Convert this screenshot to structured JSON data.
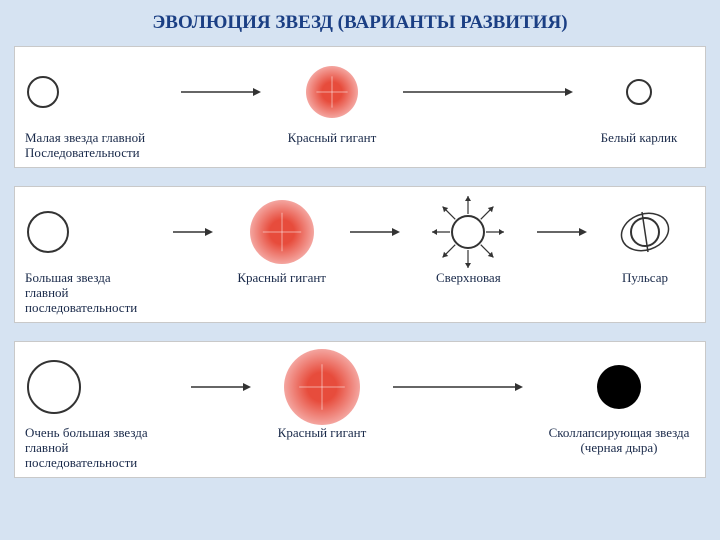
{
  "page": {
    "background_color": "#d6e3f2",
    "panel_background": "#ffffff",
    "panel_border_color": "#c9c9c9",
    "title_color": "#1b3f84",
    "title_fontsize": 19,
    "label_color": "#1a2a4a",
    "label_fontsize": 13
  },
  "title": "ЭВОЛЮЦИЯ ЗВЕЗД (ВАРИАНТЫ РАЗВИТИЯ)",
  "colors": {
    "star_outline": "#333333",
    "red_giant_fill": "#f6b4b0",
    "red_giant_center": "#e74c3c",
    "black_hole_fill": "#000000",
    "arrow_stroke": "#333333",
    "pulsar_ring": "#333333"
  },
  "panels": [
    {
      "stages": [
        {
          "type": "outline-circle",
          "radius": 15,
          "label": "Малая звезда главной\nПоследовательности",
          "align": "left",
          "width": 150
        },
        {
          "type": "red-giant",
          "radius": 26,
          "label": "Красный гигант",
          "width": 130
        },
        {
          "type": "outline-circle",
          "radius": 12,
          "label": "Белый карлик",
          "width": 120
        }
      ],
      "arrows": [
        {
          "length": 80,
          "stroke_width": 1.5
        },
        {
          "length": 170,
          "stroke_width": 1.5
        }
      ]
    },
    {
      "stages": [
        {
          "type": "outline-circle",
          "radius": 20,
          "label": "Большая звезда\nглавной\nпоследовательности",
          "align": "left",
          "width": 140
        },
        {
          "type": "red-giant",
          "radius": 32,
          "label": "Красный гигант",
          "width": 120
        },
        {
          "type": "supernova",
          "radius": 16,
          "ray_len": 20,
          "label": "Сверхновая",
          "width": 120
        },
        {
          "type": "pulsar",
          "radius": 14,
          "label": "Пульсар",
          "width": 100
        }
      ],
      "arrows": [
        {
          "length": 40,
          "stroke_width": 1.5
        },
        {
          "length": 50,
          "stroke_width": 1.5
        },
        {
          "length": 50,
          "stroke_width": 1.5
        }
      ]
    },
    {
      "stages": [
        {
          "type": "outline-circle",
          "radius": 26,
          "label": "Очень большая звезда\nглавной\nпоследовательности",
          "align": "left",
          "width": 160
        },
        {
          "type": "red-giant",
          "radius": 38,
          "label": "Красный гигант",
          "width": 130
        },
        {
          "type": "black-hole",
          "radius": 22,
          "label": "Сколлапсирующая звезда\n(черная дыра)",
          "width": 180
        }
      ],
      "arrows": [
        {
          "length": 60,
          "stroke_width": 1.5
        },
        {
          "length": 130,
          "stroke_width": 1.5
        }
      ]
    }
  ]
}
